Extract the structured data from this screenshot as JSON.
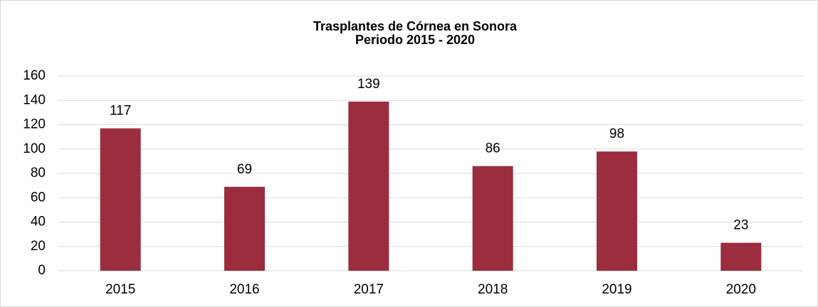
{
  "chart_data": {
    "type": "bar",
    "title": "Trasplantes de Córnea en Sonora",
    "subtitle": "Periodo 2015 - 2020",
    "categories": [
      "2015",
      "2016",
      "2017",
      "2018",
      "2019",
      "2020"
    ],
    "values": [
      117,
      69,
      139,
      86,
      98,
      23
    ],
    "color": "#9b2d3e",
    "ylim": [
      0,
      160
    ],
    "yticks": [
      0,
      20,
      40,
      60,
      80,
      100,
      120,
      140,
      160
    ],
    "grid": true
  }
}
